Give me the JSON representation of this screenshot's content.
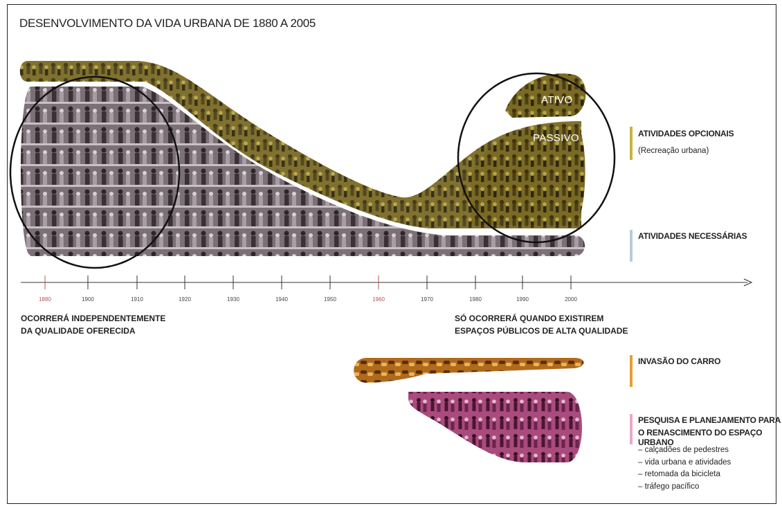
{
  "title": "DESENVOLVIMENTO DA VIDA URBANA DE 1880 A 2005",
  "timeline": {
    "ticks": [
      "1880",
      "1900",
      "1910",
      "1920",
      "1930",
      "1940",
      "1950",
      "1960",
      "1970",
      "1980",
      "1990",
      "2000"
    ],
    "highlight_ticks": [
      "1880",
      "1960"
    ],
    "highlight_color": "#b5505a"
  },
  "bands": {
    "optional_label_active": "ATIVO",
    "optional_label_passive": "PASSIVO"
  },
  "legend": {
    "optional": {
      "title": "ATIVIDADES OPCIONAIS",
      "subtitle": "(Recreação urbana)",
      "color": "#c9b43a"
    },
    "necessary": {
      "title": "ATIVIDADES NECESSÁRIAS",
      "color": "#b8cdd8"
    },
    "car": {
      "title": "INVASÃO DO CARRO",
      "color": "#e8a030"
    },
    "research": {
      "title_line1": "PESQUISA E PLANEJAMENTO PARA",
      "title_line2": "O RENASCIMENTO DO ESPAÇO URBANO",
      "color": "#e9a9c6"
    }
  },
  "notes": {
    "left_line1": "OCORRERÁ INDEPENDENTEMENTE",
    "left_line2": "DA QUALIDADE OFERECIDA",
    "right_line1": "SÓ OCORRERÁ QUANDO EXISTIREM",
    "right_line2": "ESPAÇOS PÚBLICOS DE ALTA QUALIDADE"
  },
  "bullets": [
    "– calçadões de pedestres",
    "– vida urbana e atividades",
    "– retomada da bicicleta",
    "– tráfego pacífico"
  ],
  "colors": {
    "optional_band": "#6b5a1e",
    "necessary_band": "#5d5058",
    "car_band": "#8a4e12",
    "research_band": "#8a2f62"
  }
}
